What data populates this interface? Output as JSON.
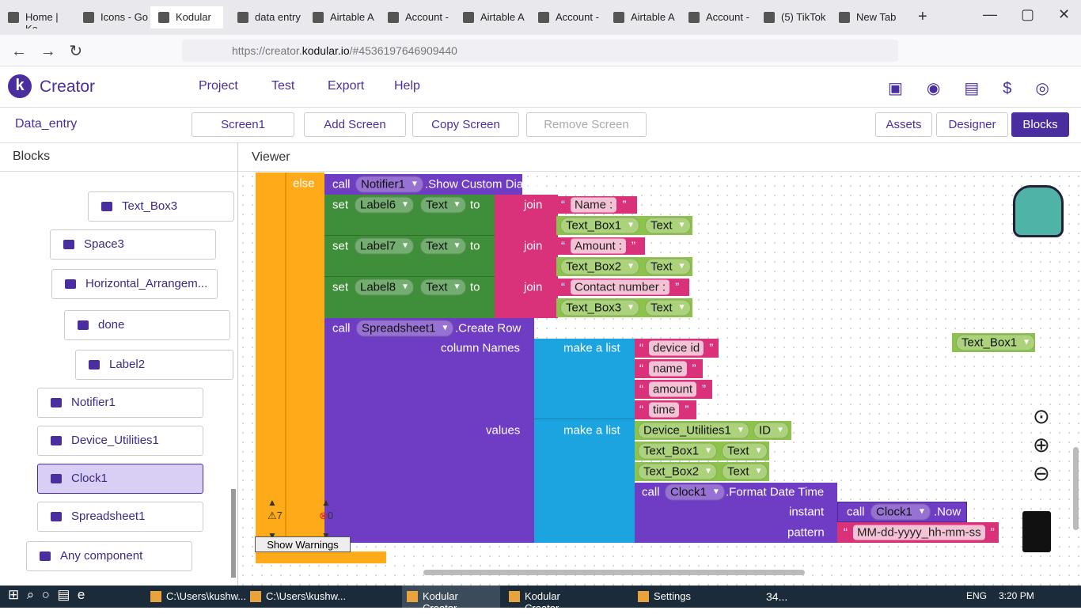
{
  "browser": {
    "tabs": [
      "Home | Ko",
      "Icons - Go",
      "Kodular",
      "data entry",
      "Airtable A",
      "Account -",
      "Airtable A",
      "Account -",
      "Airtable A",
      "Account -",
      "(5) TikTok",
      "New Tab"
    ],
    "url_prefix": "https://creator.",
    "url_domain": "kodular.io",
    "url_path": "/#4536197646909440"
  },
  "app": {
    "brand": "Creator",
    "menu": [
      "Project",
      "Test",
      "Export",
      "Help"
    ],
    "project": "Data_entry",
    "screen_buttons": [
      "Screen1",
      "Add Screen",
      "Copy Screen",
      "Remove Screen"
    ],
    "view_buttons": [
      "Assets",
      "Designer",
      "Blocks"
    ]
  },
  "sidebar": {
    "title": "Blocks",
    "items": [
      "Text_Box3",
      "Space3",
      "Horizontal_Arrangem...",
      "done",
      "Label2",
      "Notifier1",
      "Device_Utilities1",
      "Clock1",
      "Spreadsheet1",
      "Any component"
    ]
  },
  "viewer": {
    "title": "Viewer",
    "blocks": [
      "else",
      "call",
      "Notifier1",
      ".Show Custom Dialog",
      "set",
      "Label6",
      "Text",
      "to",
      "join",
      "Name :",
      "Text_Box1",
      "Text",
      "set",
      "Label7",
      "Text",
      "to",
      "join",
      "Amount :",
      "Text_Box2",
      "Text",
      "set",
      "Label8",
      "Text",
      "to",
      "join",
      "Contact number :",
      "Text_Box3",
      "Text",
      "call",
      "Spreadsheet1",
      ".Create Row",
      "column Names",
      "make a list",
      "device id",
      "name",
      "amount",
      "time",
      "values",
      "make a list",
      "Device_Utilities1",
      "ID",
      "Text_Box1",
      "Text",
      "Text_Box2",
      "Text",
      "call",
      "Clock1",
      ".Format Date Time",
      "instant",
      "call",
      "Clock1",
      ".Now",
      "pattern",
      "MM-dd-yyyy_hh-mm-ss",
      "Text_Box1"
    ],
    "warnings": "7",
    "errors": "0",
    "show_warnings": "Show Warnings"
  },
  "taskbar": {
    "items": [
      "C:\\Users\\kushw...",
      "C:\\Users\\kushw...",
      "Kodular Creator...",
      "Kodular Creator...",
      "Settings"
    ],
    "weather": "34...",
    "language": "ENG",
    "time": "3:20 PM"
  }
}
